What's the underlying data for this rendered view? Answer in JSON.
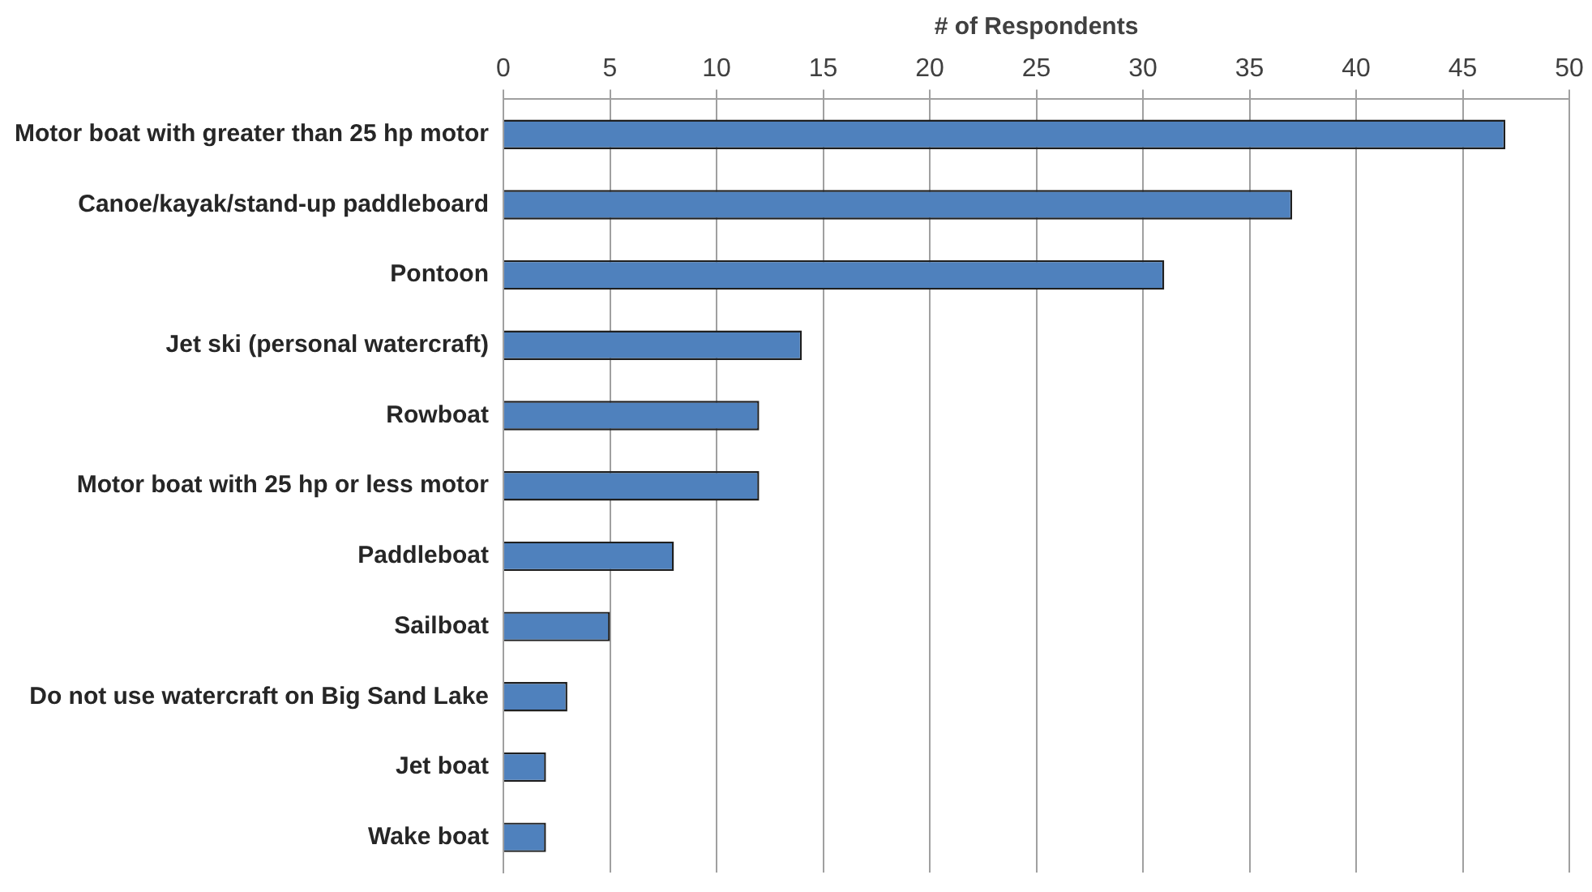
{
  "chart_data": {
    "type": "bar",
    "orientation": "horizontal",
    "xlabel": "# of Respondents",
    "categories": [
      "Motor boat with greater than 25 hp motor",
      "Canoe/kayak/stand-up paddleboard",
      "Pontoon",
      "Jet ski (personal watercraft)",
      "Rowboat",
      "Motor boat with 25 hp or less motor",
      "Paddleboat",
      "Sailboat",
      "Do not use watercraft on Big Sand Lake",
      "Jet boat",
      "Wake boat"
    ],
    "values": [
      47,
      37,
      31,
      14,
      12,
      12,
      8,
      5,
      3,
      2,
      2
    ],
    "color": "#4f81bd",
    "xlim": [
      0,
      50
    ],
    "xticks": [
      0,
      5,
      10,
      15,
      20,
      25,
      30,
      35,
      40,
      45,
      50
    ],
    "grid": "x",
    "legend": false
  }
}
